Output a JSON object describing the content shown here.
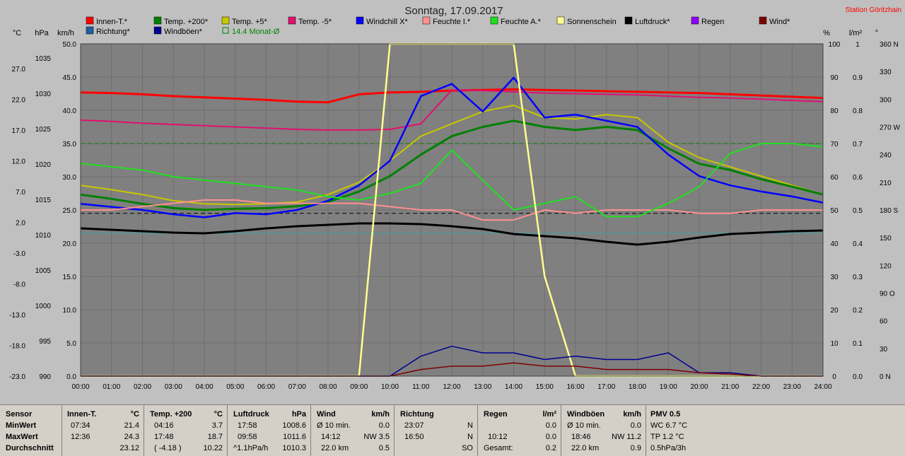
{
  "title": "Sonntag, 17.09.2017",
  "station": "Station Göritzhain",
  "axis_units": {
    "temp": "°C",
    "press": "hPa",
    "wind": "km/h",
    "pct": "%",
    "rain": "l/m²",
    "dir": "°"
  },
  "legend": [
    {
      "label": "Innen-T.*",
      "color": "#ff0000"
    },
    {
      "label": "Temp. +200*",
      "color": "#008000"
    },
    {
      "label": "Temp. +5*",
      "color": "#c8c800"
    },
    {
      "label": "Temp. -5*",
      "color": "#e01070"
    },
    {
      "label": "Windchill X*",
      "color": "#0000ff"
    },
    {
      "label": "Feuchte I.*",
      "color": "#ff9090"
    },
    {
      "label": "Feuchte A.*",
      "color": "#20e020"
    },
    {
      "label": "Sonnenschein",
      "color": "#ffff90"
    },
    {
      "label": "Luftdruck*",
      "color": "#000000"
    },
    {
      "label": "Regen",
      "color": "#9000ff"
    },
    {
      "label": "Wind*",
      "color": "#800000"
    },
    {
      "label": "Richtung*",
      "color": "#2060a0"
    },
    {
      "label": "Windböen*",
      "color": "#000090"
    },
    {
      "label": "14.4 Monat-Ø",
      "color": "#008000",
      "hollow": true
    }
  ],
  "chart_data": {
    "type": "line",
    "title": "Sonntag, 17.09.2017",
    "x": [
      "00:00",
      "01:00",
      "02:00",
      "03:00",
      "04:00",
      "05:00",
      "06:00",
      "07:00",
      "08:00",
      "09:00",
      "10:00",
      "11:00",
      "12:00",
      "13:00",
      "14:00",
      "15:00",
      "16:00",
      "17:00",
      "18:00",
      "19:00",
      "20:00",
      "21:00",
      "22:00",
      "23:00",
      "24:00"
    ],
    "axes": {
      "temp_c": {
        "ticks": [
          "27.0",
          "22.0",
          "17.0",
          "12.0",
          "7.0",
          "2.0",
          "-3.0",
          "-8.0",
          "-13.0",
          "-18.0",
          "-23.0"
        ],
        "range": [
          -23.0,
          31.0
        ]
      },
      "pressure_hpa": {
        "ticks": [
          "1035",
          "1030",
          "1025",
          "1020",
          "1015",
          "1010",
          "1005",
          "1000",
          "995",
          "990"
        ],
        "range": [
          990,
          1037
        ]
      },
      "wind_kmh": {
        "ticks": [
          "50.0",
          "45.0",
          "40.0",
          "35.0",
          "30.0",
          "25.0",
          "20.0",
          "15.0",
          "10.0",
          "5.0",
          "0.0"
        ],
        "range": [
          0,
          50
        ]
      },
      "humidity_pct": {
        "ticks": [
          "100",
          "90",
          "80",
          "70",
          "60",
          "50",
          "40",
          "30",
          "20",
          "10",
          "0"
        ],
        "range": [
          0,
          100
        ]
      },
      "rain_lm2": {
        "ticks": [
          "1",
          "0.9",
          "0.8",
          "0.7",
          "0.6",
          "0.5",
          "0.4",
          "0.3",
          "0.2",
          "0.1",
          "0.0"
        ],
        "range": [
          0,
          1
        ]
      },
      "direction_deg": {
        "ticks": [
          "360 N",
          "330",
          "300",
          "270 W",
          "240",
          "210",
          "180 S",
          "150",
          "120",
          "90 O",
          "60",
          "30",
          "0 N"
        ],
        "range": [
          0,
          360
        ]
      }
    },
    "series": [
      {
        "name": "Innen-T.*",
        "axis": "temp_c",
        "values": [
          23.1,
          23.0,
          22.8,
          22.5,
          22.3,
          22.1,
          21.9,
          21.6,
          21.5,
          22.8,
          23.1,
          23.2,
          23.4,
          23.5,
          23.6,
          23.5,
          23.4,
          23.3,
          23.2,
          23.1,
          23.0,
          22.8,
          22.6,
          22.4,
          22.2
        ]
      },
      {
        "name": "Temp. -5*",
        "axis": "temp_c",
        "values": [
          18.6,
          18.4,
          18.1,
          17.9,
          17.7,
          17.5,
          17.3,
          17.1,
          17.0,
          17.0,
          17.1,
          18.0,
          23.5,
          23.4,
          23.2,
          23.0,
          22.9,
          22.8,
          22.7,
          22.5,
          22.3,
          22.2,
          22.0,
          21.8,
          21.6
        ]
      },
      {
        "name": "Temp. +5*",
        "axis": "temp_c",
        "values": [
          8.0,
          7.3,
          6.5,
          5.5,
          5.0,
          4.9,
          5.0,
          5.3,
          6.5,
          8.5,
          12.0,
          16.0,
          18.0,
          20.0,
          21.0,
          19.0,
          18.8,
          19.5,
          19.0,
          15.0,
          12.5,
          11.0,
          9.5,
          8.0,
          6.5
        ]
      },
      {
        "name": "Temp. +200*",
        "axis": "temp_c",
        "values": [
          6.5,
          5.8,
          5.0,
          4.3,
          4.0,
          4.2,
          4.3,
          4.6,
          5.3,
          7.0,
          9.5,
          13.0,
          16.0,
          17.5,
          18.5,
          17.5,
          17.0,
          17.5,
          17.0,
          14.0,
          11.5,
          10.5,
          9.0,
          7.8,
          6.5
        ]
      },
      {
        "name": "Windchill X*",
        "axis": "temp_c",
        "values": [
          5.0,
          4.5,
          4.0,
          3.3,
          2.8,
          3.5,
          3.3,
          4.0,
          5.5,
          8.0,
          12.0,
          22.5,
          24.5,
          20.0,
          25.5,
          19.0,
          19.5,
          18.5,
          17.5,
          13.0,
          9.5,
          8.0,
          7.0,
          6.2,
          5.2
        ]
      },
      {
        "name": "Feuchte I.*",
        "axis": "humidity_pct",
        "values": [
          50,
          50,
          51,
          52,
          53,
          53,
          52,
          52,
          52,
          52,
          51,
          50,
          50,
          47,
          47,
          50,
          49,
          50,
          50,
          50,
          49,
          49,
          50,
          50,
          50
        ]
      },
      {
        "name": "Feuchte A.*",
        "axis": "humidity_pct",
        "values": [
          64,
          63,
          62,
          60,
          59,
          58,
          57,
          56,
          54,
          53,
          55,
          58,
          68,
          59,
          50,
          52,
          54,
          48,
          48,
          52,
          57,
          67,
          70,
          70,
          69
        ]
      },
      {
        "name": "Luftdruck*",
        "axis": "pressure_hpa",
        "values": [
          1010.9,
          1010.7,
          1010.5,
          1010.3,
          1010.2,
          1010.5,
          1010.9,
          1011.2,
          1011.4,
          1011.6,
          1011.6,
          1011.5,
          1011.2,
          1010.8,
          1010.1,
          1009.8,
          1009.5,
          1009.0,
          1008.6,
          1009.0,
          1009.6,
          1010.1,
          1010.3,
          1010.5,
          1010.6
        ]
      },
      {
        "name": "Sonnenschein",
        "axis": "humidity_pct",
        "values": [
          0,
          0,
          0,
          0,
          0,
          0,
          0,
          0,
          0,
          0,
          100,
          100,
          100,
          100,
          100,
          30,
          0,
          0,
          0,
          0,
          0,
          0,
          0,
          0,
          0
        ]
      },
      {
        "name": "Windböen*",
        "axis": "wind_kmh",
        "values": [
          0,
          0,
          0,
          0,
          0,
          0,
          0,
          0,
          0,
          0,
          0,
          3.0,
          4.5,
          3.5,
          3.5,
          2.5,
          3.0,
          2.5,
          2.5,
          3.5,
          0.5,
          0.5,
          0,
          0,
          0
        ]
      },
      {
        "name": "Wind*",
        "axis": "wind_kmh",
        "values": [
          0,
          0,
          0,
          0,
          0,
          0,
          0,
          0,
          0,
          0,
          0,
          1.0,
          1.5,
          1.5,
          2.0,
          1.5,
          1.5,
          1.0,
          1.0,
          1.0,
          0.5,
          0.3,
          0,
          0,
          0
        ]
      }
    ]
  },
  "stats": {
    "sensor_col": {
      "header": "Sensor",
      "min": "MinWert",
      "max": "MaxWert",
      "avg": "Durchschnitt"
    },
    "innen": {
      "header": "Innen-T.",
      "unit": "°C",
      "min_time": "07:34",
      "min_val": "21.4",
      "max_time": "12:36",
      "max_val": "24.3",
      "avg_time": "",
      "avg_val": "23.12"
    },
    "temp200": {
      "header": "Temp. +200",
      "unit": "°C",
      "min_time": "04:16",
      "min_val": "3.7",
      "max_time": "17:48",
      "max_val": "18.7",
      "avg_time": "( -4.18 )",
      "avg_val": "10.22"
    },
    "luftdruck": {
      "header": "Luftdruck",
      "unit": "hPa",
      "min_time": "17:58",
      "min_val": "1008.6",
      "max_time": "09:58",
      "max_val": "1011.6",
      "avg_time": "^1.1hPa/h",
      "avg_val": "1010.3"
    },
    "wind": {
      "header": "Wind",
      "unit": "km/h",
      "min_time": "Ø 10 min.",
      "min_val": "0.0",
      "max_time": "14:12",
      "max_val": "NW 3.5",
      "avg_time": "22.0 km",
      "avg_val": "0.5"
    },
    "richtung": {
      "header": "Richtung",
      "unit": "",
      "min_time": "23:07",
      "min_val": "N",
      "max_time": "16:50",
      "max_val": "N",
      "avg_time": "",
      "avg_val": "SO"
    },
    "regen": {
      "header": "Regen",
      "unit": "l/m²",
      "min_time": "",
      "min_val": "0.0",
      "max_time": "10:12",
      "max_val": "0.0",
      "avg_time": "Gesamt:",
      "avg_val": "0.2"
    },
    "boeen": {
      "header": "Windböen",
      "unit": "km/h",
      "min_time": "Ø 10 min.",
      "min_val": "0.0",
      "max_time": "18:46",
      "max_val": "NW 11.2",
      "avg_time": "22.0 km",
      "avg_val": "0.9"
    },
    "pmv": {
      "header": "PMV 0.5",
      "min_val": "WC 6.7 °C",
      "max_val": "TP 1.2 °C",
      "avg_val": "0.5hPa/3h"
    }
  }
}
